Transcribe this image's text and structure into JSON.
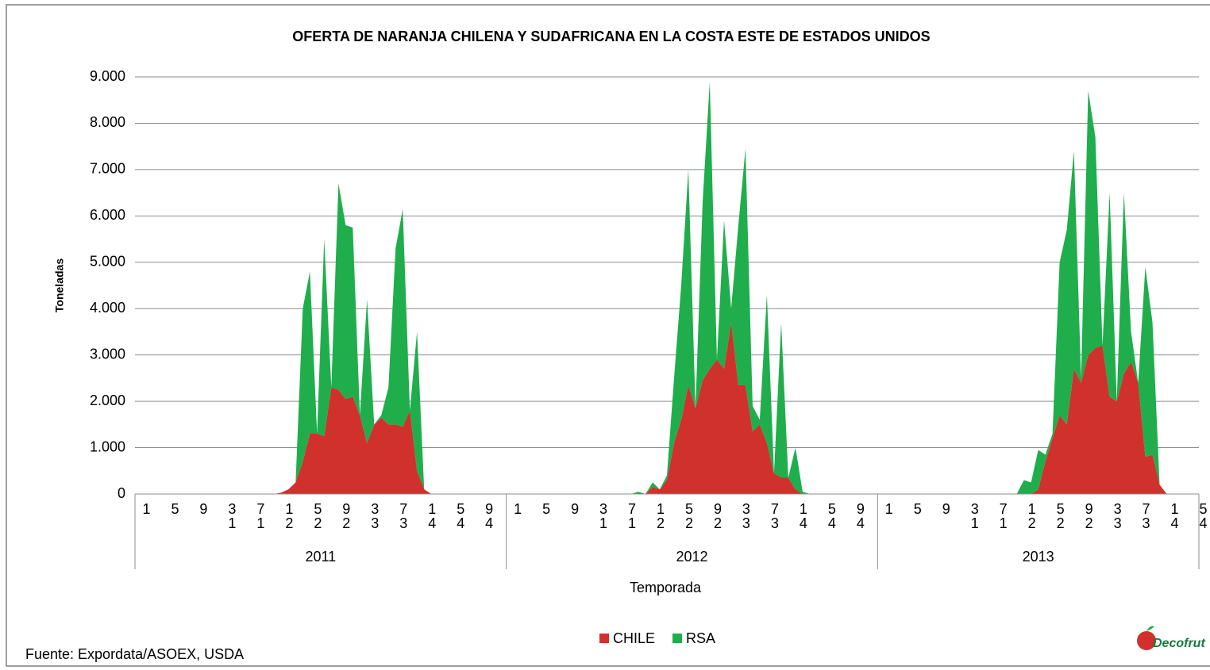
{
  "chart_data": {
    "type": "stacked_area",
    "title": "OFERTA DE NARANJA CHILENA Y SUDAFRICANA EN LA COSTA ESTE DE ESTADOS UNIDOS",
    "y_axis_label": "Toneladas",
    "x_axis_label": "Temporada",
    "source": "Fuente: Expordata/ASOEX, USDA",
    "logo_text": "Decofrut",
    "groups": [
      {
        "name": "2011",
        "categories": [
          "1",
          null,
          null,
          null,
          "5",
          null,
          null,
          null,
          "9",
          null,
          null,
          null,
          "13",
          null,
          null,
          null,
          "17",
          null,
          null,
          null,
          "21",
          null,
          null,
          null,
          "25",
          null,
          null,
          null,
          "29",
          null,
          null,
          null,
          "33",
          null,
          null,
          null,
          "37",
          null,
          null,
          null,
          "41",
          null,
          null,
          null,
          "45",
          null,
          null,
          null,
          "49",
          null,
          null,
          null
        ]
      },
      {
        "name": "2012",
        "categories": [
          "1",
          null,
          null,
          null,
          "5",
          null,
          null,
          null,
          "9",
          null,
          null,
          null,
          "13",
          null,
          null,
          null,
          "17",
          null,
          null,
          null,
          "21",
          null,
          null,
          null,
          "25",
          null,
          null,
          null,
          "29",
          null,
          null,
          null,
          "33",
          null,
          null,
          null,
          "37",
          null,
          null,
          null,
          "41",
          null,
          null,
          null,
          "45",
          null,
          null,
          null,
          "49",
          null,
          null,
          null
        ]
      },
      {
        "name": "2013",
        "categories": [
          "1",
          null,
          null,
          null,
          "5",
          null,
          null,
          null,
          "9",
          null,
          null,
          null,
          "13",
          null,
          null,
          null,
          "17",
          null,
          null,
          null,
          "21",
          null,
          null,
          null,
          "25",
          null,
          null,
          null,
          "29",
          null,
          null,
          null,
          "33",
          null,
          null,
          null,
          "37",
          null,
          null,
          null,
          "41",
          null,
          null,
          null,
          "45"
        ]
      }
    ],
    "series": [
      {
        "name": "CHILE",
        "color": "#d0312d",
        "values": [
          0,
          0,
          0,
          0,
          0,
          0,
          0,
          0,
          0,
          0,
          0,
          0,
          0,
          0,
          0,
          0,
          0,
          0,
          0,
          0,
          30,
          100,
          250,
          700,
          1300,
          1300,
          1250,
          2300,
          2250,
          2050,
          2100,
          1700,
          1100,
          1500,
          1650,
          1500,
          1500,
          1450,
          1800,
          500,
          100,
          0,
          0,
          0,
          0,
          0,
          0,
          0,
          0,
          0,
          0,
          0,
          0,
          0,
          0,
          0,
          0,
          0,
          0,
          0,
          0,
          0,
          0,
          0,
          0,
          0,
          0,
          0,
          0,
          0,
          0,
          0,
          150,
          100,
          300,
          1100,
          1600,
          2350,
          1850,
          2450,
          2700,
          2900,
          2700,
          3700,
          2350,
          2350,
          1350,
          1500,
          1100,
          450,
          350,
          350,
          100,
          0,
          0,
          0,
          0,
          0,
          0,
          0,
          0,
          0,
          0,
          0,
          0,
          0,
          0,
          0,
          0,
          0,
          0,
          0,
          0,
          0,
          0,
          0,
          0,
          0,
          0,
          0,
          0,
          0,
          0,
          0,
          0,
          0,
          100,
          700,
          1200,
          1700,
          1500,
          2700,
          2400,
          3000,
          3150,
          3200,
          2100,
          2000,
          2600,
          2850,
          2400,
          800,
          850,
          200,
          0,
          0,
          0,
          0,
          0
        ]
      },
      {
        "name": "RSA",
        "color": "#1fae4b",
        "values": [
          0,
          0,
          0,
          0,
          0,
          0,
          0,
          0,
          0,
          0,
          0,
          0,
          0,
          0,
          0,
          0,
          0,
          0,
          0,
          0,
          0,
          0,
          0,
          3300,
          3500,
          0,
          4250,
          0,
          4450,
          3750,
          3650,
          0,
          3100,
          0,
          50,
          800,
          3800,
          4700,
          0,
          3000,
          0,
          0,
          0,
          0,
          0,
          0,
          0,
          0,
          0,
          0,
          0,
          0,
          0,
          0,
          0,
          0,
          0,
          0,
          0,
          0,
          0,
          0,
          0,
          0,
          0,
          0,
          0,
          0,
          0,
          0,
          50,
          0,
          100,
          0,
          100,
          1400,
          2900,
          4650,
          0,
          3850,
          6200,
          0,
          3200,
          300,
          3450,
          5100,
          550,
          100,
          3200,
          0,
          3350,
          0,
          900,
          50,
          0,
          0,
          0,
          0,
          0,
          0,
          0,
          0,
          0,
          0,
          0,
          0,
          0,
          0,
          0,
          0,
          0,
          0,
          0,
          0,
          0,
          0,
          0,
          0,
          0,
          0,
          0,
          0,
          0,
          0,
          300,
          250,
          850,
          150,
          100,
          3300,
          4200,
          4700,
          100,
          5700,
          4550,
          0,
          4400,
          0,
          3900,
          650,
          0,
          4100,
          2850,
          0,
          0,
          0,
          0,
          0,
          0
        ]
      }
    ],
    "ylim": [
      0,
      9000
    ],
    "yticks": [
      0,
      {
        "value": 1000,
        "label": "1.000"
      },
      {
        "value": 2000,
        "label": "2.000"
      },
      {
        "value": 3000,
        "label": "3.000"
      },
      {
        "value": 4000,
        "label": "4.000"
      },
      {
        "value": 5000,
        "label": "5.000"
      },
      {
        "value": 6000,
        "label": "6.000"
      },
      {
        "value": 7000,
        "label": "7.000"
      },
      {
        "value": 8000,
        "label": "8.000"
      },
      {
        "value": 9000,
        "label": "9.000"
      }
    ],
    "grid": true,
    "legend": "bottom"
  }
}
